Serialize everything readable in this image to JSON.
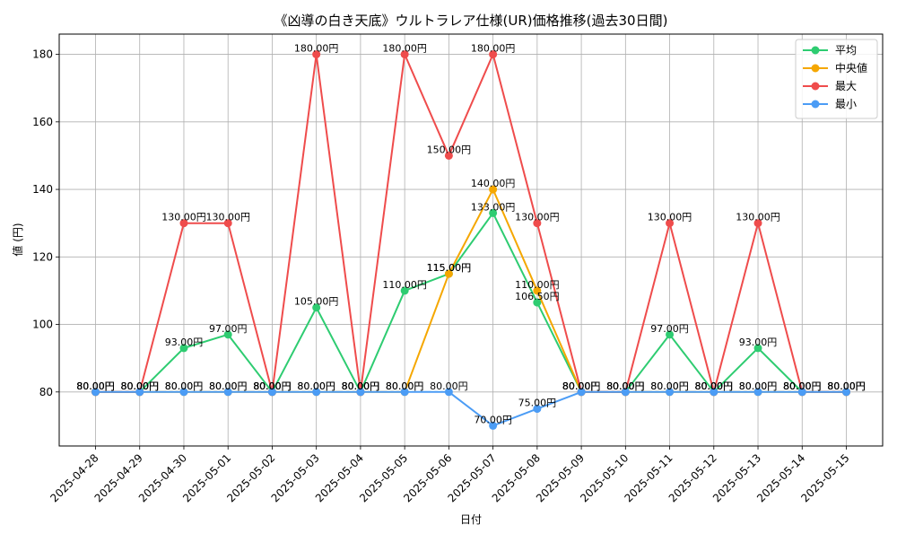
{
  "chart_data": {
    "type": "line",
    "title": "《凶導の白き天底》ウルトラレア仕様(UR)価格推移(過去30日間)",
    "xlabel": "日付",
    "ylabel": "値 (円)",
    "ylim": [
      64,
      186
    ],
    "yticks": [
      80,
      100,
      120,
      140,
      160,
      180
    ],
    "grid": true,
    "legend_position": "top-right",
    "value_suffix": "円",
    "categories": [
      "2025-04-28",
      "2025-04-29",
      "2025-04-30",
      "2025-05-01",
      "2025-05-02",
      "2025-05-03",
      "2025-05-04",
      "2025-05-05",
      "2025-05-06",
      "2025-05-07",
      "2025-05-08",
      "2025-05-09",
      "2025-05-10",
      "2025-05-11",
      "2025-05-12",
      "2025-05-13",
      "2025-05-14",
      "2025-05-15"
    ],
    "series": [
      {
        "name": "平均",
        "color": "#2ecc71",
        "values": [
          80,
          80,
          93,
          97,
          80,
          105,
          80,
          110,
          115,
          133,
          106.5,
          80,
          80,
          97,
          80,
          93,
          80,
          80
        ]
      },
      {
        "name": "中央値",
        "color": "#f5a700",
        "values": [
          80,
          80,
          80,
          80,
          80,
          80,
          80,
          80,
          115,
          140,
          110,
          80,
          80,
          80,
          80,
          80,
          80,
          80
        ]
      },
      {
        "name": "最大",
        "color": "#ef4c4c",
        "values": [
          80,
          80,
          130,
          130,
          80,
          180,
          80,
          180,
          150,
          180,
          130,
          80,
          80,
          130,
          80,
          130,
          80,
          80
        ]
      },
      {
        "name": "最小",
        "color": "#4b9cf5",
        "values": [
          80,
          80,
          80,
          80,
          80,
          80,
          80,
          80,
          80,
          70,
          75,
          80,
          80,
          80,
          80,
          80,
          80,
          80
        ]
      }
    ]
  }
}
